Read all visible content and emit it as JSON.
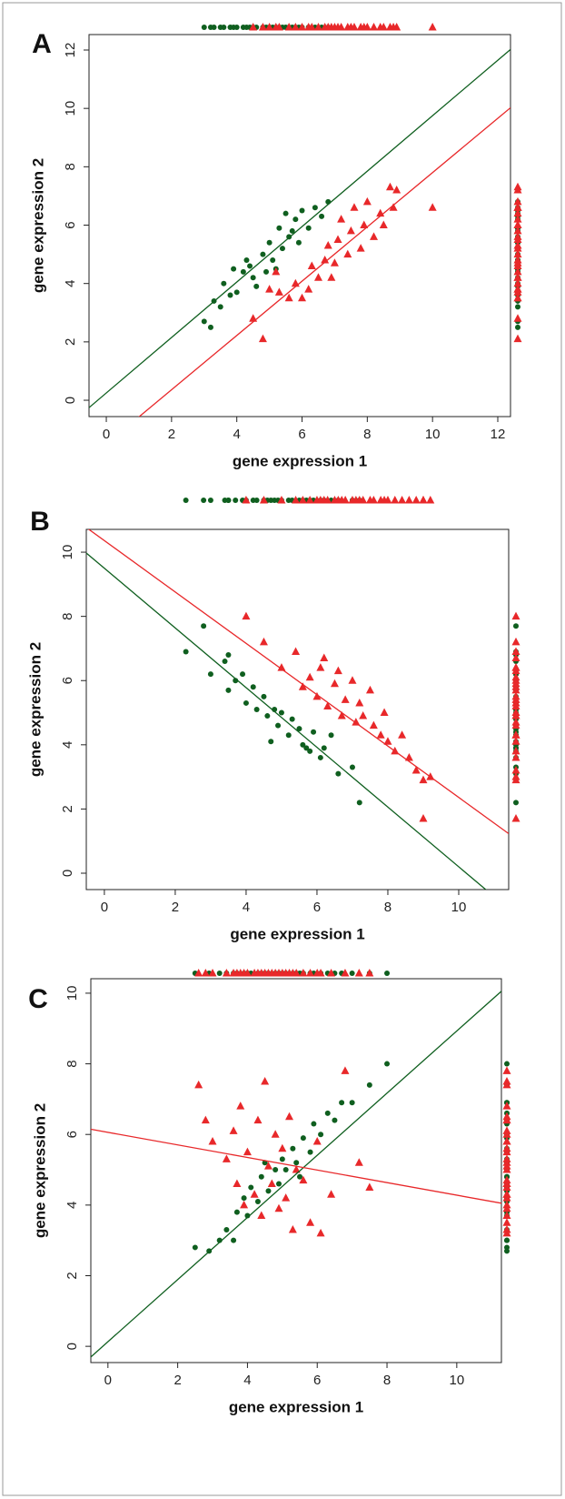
{
  "chart_data": [
    {
      "type": "scatter",
      "panel_label": "A",
      "xlabel": "gene expression 1",
      "ylabel": "gene expression 2",
      "xlim": [
        -0.53,
        12.39
      ],
      "ylim": [
        -0.56,
        12.53
      ],
      "xticks": [
        0,
        2,
        4,
        6,
        8,
        10,
        12
      ],
      "yticks": [
        0,
        2,
        4,
        6,
        8,
        10,
        12
      ],
      "series": [
        {
          "color": "#0f5f1f",
          "marker": "circle",
          "x": [
            3,
            3.2,
            3.3,
            3.5,
            3.6,
            3.8,
            3.9,
            4.0,
            4.2,
            4.3,
            4.5,
            4.6,
            4.8,
            4.9,
            5.0,
            5.1,
            5.3,
            5.4,
            5.5,
            5.6,
            5.8,
            5.9,
            6.0,
            6.2,
            6.4,
            6.6,
            6.8,
            5.2,
            4.4,
            5.7
          ],
          "values": [
            2.7,
            2.5,
            3.4,
            3.2,
            4.0,
            3.6,
            4.5,
            3.7,
            4.4,
            4.8,
            4.2,
            3.9,
            5.0,
            4.4,
            5.4,
            4.8,
            5.9,
            5.2,
            6.4,
            5.6,
            6.2,
            5.4,
            6.5,
            5.9,
            6.6,
            6.3,
            6.8,
            4.5,
            4.6,
            5.8
          ]
        },
        {
          "color": "#e8282a",
          "marker": "triangle",
          "x": [
            4.8,
            4.5,
            5.0,
            5.3,
            5.6,
            5.8,
            6.0,
            6.2,
            6.3,
            6.5,
            6.7,
            6.8,
            7.0,
            7.1,
            7.2,
            7.4,
            7.5,
            7.6,
            7.8,
            7.9,
            8.0,
            8.2,
            8.4,
            8.5,
            8.7,
            8.9,
            8.8,
            10.0,
            5.2,
            6.9
          ],
          "values": [
            2.1,
            2.8,
            3.8,
            3.7,
            3.5,
            4.0,
            3.5,
            3.8,
            4.6,
            4.2,
            4.8,
            5.3,
            4.7,
            5.5,
            6.2,
            5.0,
            5.8,
            6.6,
            5.2,
            6.0,
            6.8,
            5.6,
            6.4,
            6.0,
            7.3,
            7.2,
            6.6,
            6.6,
            4.4,
            4.2
          ]
        }
      ],
      "lines": [
        {
          "color": "#0f5f1f",
          "slope": 0.95,
          "intercept": 0.25
        },
        {
          "color": "#e8282a",
          "slope": 0.93,
          "intercept": -1.5
        }
      ]
    },
    {
      "type": "scatter",
      "panel_label": "B",
      "xlabel": "gene expression 1",
      "ylabel": "gene expression 2",
      "xlim": [
        -0.51,
        11.41
      ],
      "ylim": [
        -0.51,
        10.71
      ],
      "xticks": [
        0,
        2,
        4,
        6,
        8,
        10
      ],
      "yticks": [
        0,
        2,
        4,
        6,
        8,
        10
      ],
      "series": [
        {
          "color": "#0f5f1f",
          "marker": "circle",
          "x": [
            2.3,
            2.8,
            3.0,
            3.4,
            3.5,
            3.7,
            3.9,
            4.0,
            4.2,
            4.3,
            4.5,
            4.6,
            4.8,
            4.9,
            5.0,
            5.2,
            5.3,
            5.5,
            5.6,
            5.8,
            5.9,
            6.1,
            6.2,
            6.4,
            6.6,
            7.0,
            7.2,
            3.5,
            4.7,
            5.7
          ],
          "values": [
            6.9,
            7.7,
            6.2,
            6.6,
            5.7,
            6.0,
            6.2,
            5.3,
            5.8,
            5.1,
            5.5,
            4.9,
            5.1,
            4.6,
            5.0,
            4.3,
            4.8,
            4.5,
            4.0,
            3.8,
            4.4,
            3.6,
            3.9,
            4.3,
            3.1,
            3.3,
            2.2,
            6.8,
            4.1,
            3.9
          ]
        },
        {
          "color": "#e8282a",
          "marker": "triangle",
          "x": [
            4.0,
            4.5,
            5.0,
            5.4,
            5.6,
            5.8,
            6.0,
            6.1,
            6.2,
            6.3,
            6.5,
            6.6,
            6.7,
            6.8,
            7.0,
            7.1,
            7.2,
            7.3,
            7.5,
            7.6,
            7.8,
            7.9,
            8.0,
            8.2,
            8.4,
            8.6,
            8.8,
            9.0,
            9.2,
            9.0
          ],
          "values": [
            8.0,
            7.2,
            6.4,
            6.9,
            5.8,
            6.1,
            5.5,
            6.4,
            6.7,
            5.2,
            5.9,
            6.3,
            4.9,
            5.4,
            6.0,
            4.7,
            5.3,
            4.9,
            5.7,
            4.6,
            4.3,
            5.0,
            4.1,
            3.8,
            4.3,
            3.6,
            3.2,
            2.9,
            3.0,
            1.7
          ]
        }
      ],
      "lines": [
        {
          "color": "#0f5f1f",
          "slope": -0.93,
          "intercept": 9.5
        },
        {
          "color": "#e8282a",
          "slope": -0.8,
          "intercept": 10.36
        }
      ]
    },
    {
      "type": "scatter",
      "panel_label": "C",
      "xlabel": "gene expression 1",
      "ylabel": "gene expression 2",
      "xlim": [
        -0.49,
        11.28
      ],
      "ylim": [
        -0.46,
        10.41
      ],
      "xticks": [
        0,
        2,
        4,
        6,
        8,
        10
      ],
      "yticks": [
        0,
        2,
        4,
        6,
        8,
        10
      ],
      "series": [
        {
          "color": "#0f5f1f",
          "marker": "circle",
          "x": [
            2.5,
            2.9,
            3.2,
            3.4,
            3.6,
            3.7,
            3.9,
            4.0,
            4.1,
            4.3,
            4.4,
            4.6,
            4.8,
            4.9,
            5.0,
            5.1,
            5.3,
            5.4,
            5.6,
            5.8,
            5.9,
            6.1,
            6.3,
            6.5,
            6.7,
            7.0,
            7.5,
            8.0,
            5.5,
            4.5
          ],
          "values": [
            2.8,
            2.7,
            3.0,
            3.3,
            3.0,
            3.8,
            4.2,
            3.7,
            4.5,
            4.1,
            4.8,
            4.4,
            5.0,
            4.6,
            5.3,
            5.0,
            5.6,
            5.2,
            5.9,
            5.5,
            6.3,
            6.0,
            6.6,
            6.4,
            6.9,
            6.9,
            7.4,
            8.0,
            4.8,
            5.2
          ]
        },
        {
          "color": "#e8282a",
          "marker": "triangle",
          "x": [
            2.6,
            2.8,
            3.0,
            3.4,
            3.6,
            3.7,
            3.8,
            3.9,
            4.0,
            4.2,
            4.3,
            4.4,
            4.5,
            4.6,
            4.7,
            4.8,
            4.9,
            5.0,
            5.1,
            5.2,
            5.3,
            5.4,
            5.6,
            5.8,
            6.0,
            6.1,
            6.4,
            6.8,
            7.2,
            7.5
          ],
          "values": [
            7.4,
            6.4,
            5.8,
            5.3,
            6.1,
            4.6,
            6.8,
            4.0,
            5.5,
            4.3,
            6.4,
            3.7,
            7.5,
            5.1,
            4.6,
            6.0,
            3.9,
            5.6,
            4.2,
            6.5,
            3.3,
            5.0,
            4.7,
            3.5,
            5.8,
            3.2,
            4.3,
            7.8,
            5.2,
            4.5
          ]
        }
      ],
      "lines": [
        {
          "color": "#0f5f1f",
          "slope": 0.88,
          "intercept": 0.13
        },
        {
          "color": "#e8282a",
          "slope": -0.178,
          "intercept": 6.06
        }
      ]
    }
  ]
}
